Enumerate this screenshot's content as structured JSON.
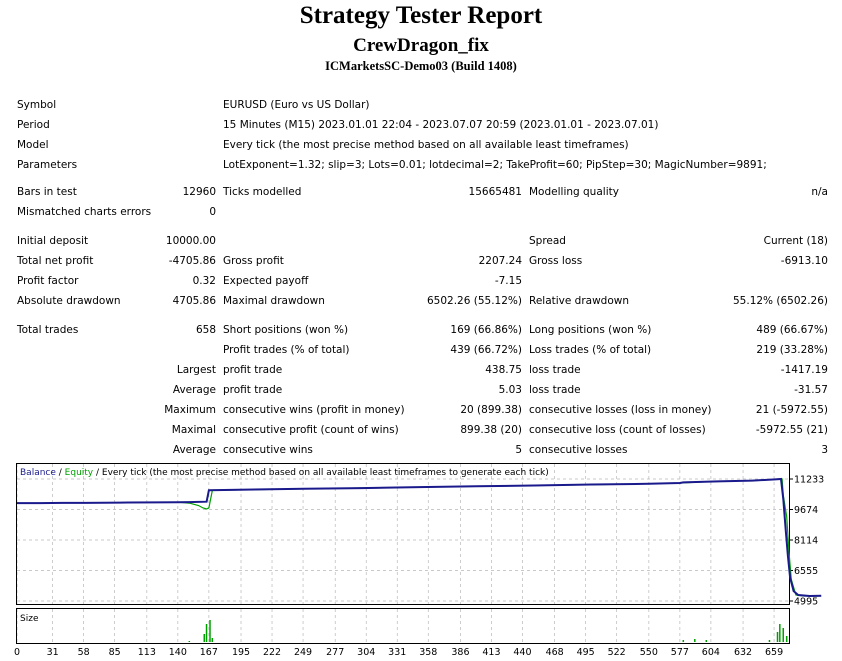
{
  "title": "Strategy Tester Report",
  "expert": "CrewDragon_fix",
  "server": "ICMarketsSC-Demo03 (Build 1408)",
  "info": {
    "symbol_label": "Symbol",
    "symbol": "EURUSD (Euro vs US Dollar)",
    "period_label": "Period",
    "period": "15 Minutes (M15) 2023.01.01 22:04 - 2023.07.07 20:59 (2023.01.01 - 2023.07.01)",
    "model_label": "Model",
    "model": "Every tick (the most precise method based on all available least timeframes)",
    "params_label": "Parameters",
    "params": "LotExponent=1.32; slip=3; Lots=0.01; lotdecimal=2; TakeProfit=60; PipStep=30; MagicNumber=9891;"
  },
  "bars": {
    "label": "Bars in test",
    "value": "12960",
    "ticks_label": "Ticks modelled",
    "ticks": "15665481",
    "quality_label": "Modelling quality",
    "quality": "n/a"
  },
  "mismatch": {
    "label": "Mismatched charts errors",
    "value": "0"
  },
  "stats": {
    "initial_deposit_label": "Initial deposit",
    "initial_deposit": "10000.00",
    "spread_label": "Spread",
    "spread": "Current (18)",
    "net_profit_label": "Total net profit",
    "net_profit": "-4705.86",
    "gross_profit_label": "Gross profit",
    "gross_profit": "2207.24",
    "gross_loss_label": "Gross loss",
    "gross_loss": "-6913.10",
    "profit_factor_label": "Profit factor",
    "profit_factor": "0.32",
    "expected_payoff_label": "Expected payoff",
    "expected_payoff": "-7.15",
    "abs_dd_label": "Absolute drawdown",
    "abs_dd": "4705.86",
    "max_dd_label": "Maximal drawdown",
    "max_dd": "6502.26 (55.12%)",
    "rel_dd_label": "Relative drawdown",
    "rel_dd": "55.12% (6502.26)"
  },
  "trades": {
    "total_label": "Total trades",
    "total": "658",
    "short_label": "Short positions (won %)",
    "short": "169 (66.86%)",
    "long_label": "Long positions (won %)",
    "long": "489 (66.67%)",
    "profit_trades_label": "Profit trades (% of total)",
    "profit_trades": "439 (66.72%)",
    "loss_trades_label": "Loss trades (% of total)",
    "loss_trades": "219 (33.28%)",
    "largest_label": "Largest",
    "largest_profit_label": "profit trade",
    "largest_profit": "438.75",
    "largest_loss_label": "loss trade",
    "largest_loss": "-1417.19",
    "average_label": "Average",
    "average_profit_label": "profit trade",
    "average_profit": "5.03",
    "average_loss_label": "loss trade",
    "average_loss": "-31.57",
    "maximum_label": "Maximum",
    "max_cons_wins_label": "consecutive wins (profit in money)",
    "max_cons_wins": "20 (899.38)",
    "max_cons_losses_label": "consecutive losses (loss in money)",
    "max_cons_losses": "21 (-5972.55)",
    "maximal_label": "Maximal",
    "maximal_profit_label": "consecutive profit (count of wins)",
    "maximal_profit": "899.38 (20)",
    "maximal_loss_label": "consecutive loss (count of losses)",
    "maximal_loss": "-5972.55 (21)",
    "avg_cons_label": "Average",
    "avg_cons_wins_label": "consecutive wins",
    "avg_cons_wins": "5",
    "avg_cons_losses_label": "consecutive losses",
    "avg_cons_losses": "3"
  },
  "chart_data": {
    "type": "line",
    "legend": {
      "balance": "Balance",
      "sep1": " / ",
      "equity": "Equity",
      "rest": " / Every tick (the most precise method based on all available least timeframes to generate each tick)"
    },
    "size_label": "Size",
    "colors": {
      "balance": "#1a1a8c",
      "equity": "#00a000",
      "size": "#00a000",
      "grid": "#b8b8b8"
    },
    "y_ticks": [
      11233,
      9674,
      8114,
      6555,
      4995
    ],
    "ylim": [
      4995,
      11233
    ],
    "x_ticks": [
      0,
      31,
      58,
      85,
      113,
      140,
      167,
      195,
      222,
      249,
      277,
      304,
      331,
      358,
      386,
      413,
      440,
      468,
      495,
      522,
      550,
      577,
      604,
      632,
      659
    ],
    "xlim": [
      0,
      672
    ],
    "balance": [
      [
        0,
        10000
      ],
      [
        20,
        10000
      ],
      [
        40,
        10010
      ],
      [
        60,
        10010
      ],
      [
        90,
        10025
      ],
      [
        120,
        10035
      ],
      [
        140,
        10045
      ],
      [
        150,
        10050
      ],
      [
        158,
        10060
      ],
      [
        165,
        10070
      ],
      [
        167,
        10660
      ],
      [
        200,
        10690
      ],
      [
        250,
        10730
      ],
      [
        300,
        10770
      ],
      [
        350,
        10820
      ],
      [
        400,
        10860
      ],
      [
        450,
        10900
      ],
      [
        500,
        10950
      ],
      [
        550,
        10990
      ],
      [
        577,
        11030
      ],
      [
        580,
        11060
      ],
      [
        610,
        11110
      ],
      [
        640,
        11150
      ],
      [
        660,
        11210
      ],
      [
        665,
        11233
      ],
      [
        667,
        10200
      ],
      [
        669,
        8700
      ],
      [
        671,
        7300
      ],
      [
        673,
        6200
      ],
      [
        676,
        5500
      ],
      [
        680,
        5300
      ],
      [
        690,
        5250
      ],
      [
        700,
        5260
      ]
    ],
    "equity": [
      [
        140,
        10045
      ],
      [
        150,
        10000
      ],
      [
        158,
        9880
      ],
      [
        162,
        9750
      ],
      [
        165,
        9700
      ],
      [
        167,
        9760
      ],
      [
        170,
        10640
      ],
      [
        168,
        10660
      ],
      [
        180,
        10660
      ],
      [
        250,
        10730
      ],
      [
        350,
        10820
      ],
      [
        450,
        10900
      ],
      [
        550,
        10990
      ],
      [
        577,
        11030
      ],
      [
        600,
        11090
      ],
      [
        650,
        11170
      ],
      [
        666,
        11233
      ],
      [
        667,
        10400
      ],
      [
        670,
        9300
      ],
      [
        672,
        7500
      ],
      [
        674,
        6100
      ],
      [
        678,
        5300
      ],
      [
        685,
        5250
      ],
      [
        700,
        5250
      ]
    ],
    "size_spikes": [
      [
        150,
        1
      ],
      [
        163,
        8
      ],
      [
        165,
        18
      ],
      [
        168,
        22
      ],
      [
        170,
        4
      ],
      [
        580,
        2
      ],
      [
        590,
        3
      ],
      [
        600,
        2
      ],
      [
        655,
        2
      ],
      [
        662,
        10
      ],
      [
        664,
        18
      ],
      [
        667,
        14
      ],
      [
        670,
        6
      ]
    ]
  }
}
